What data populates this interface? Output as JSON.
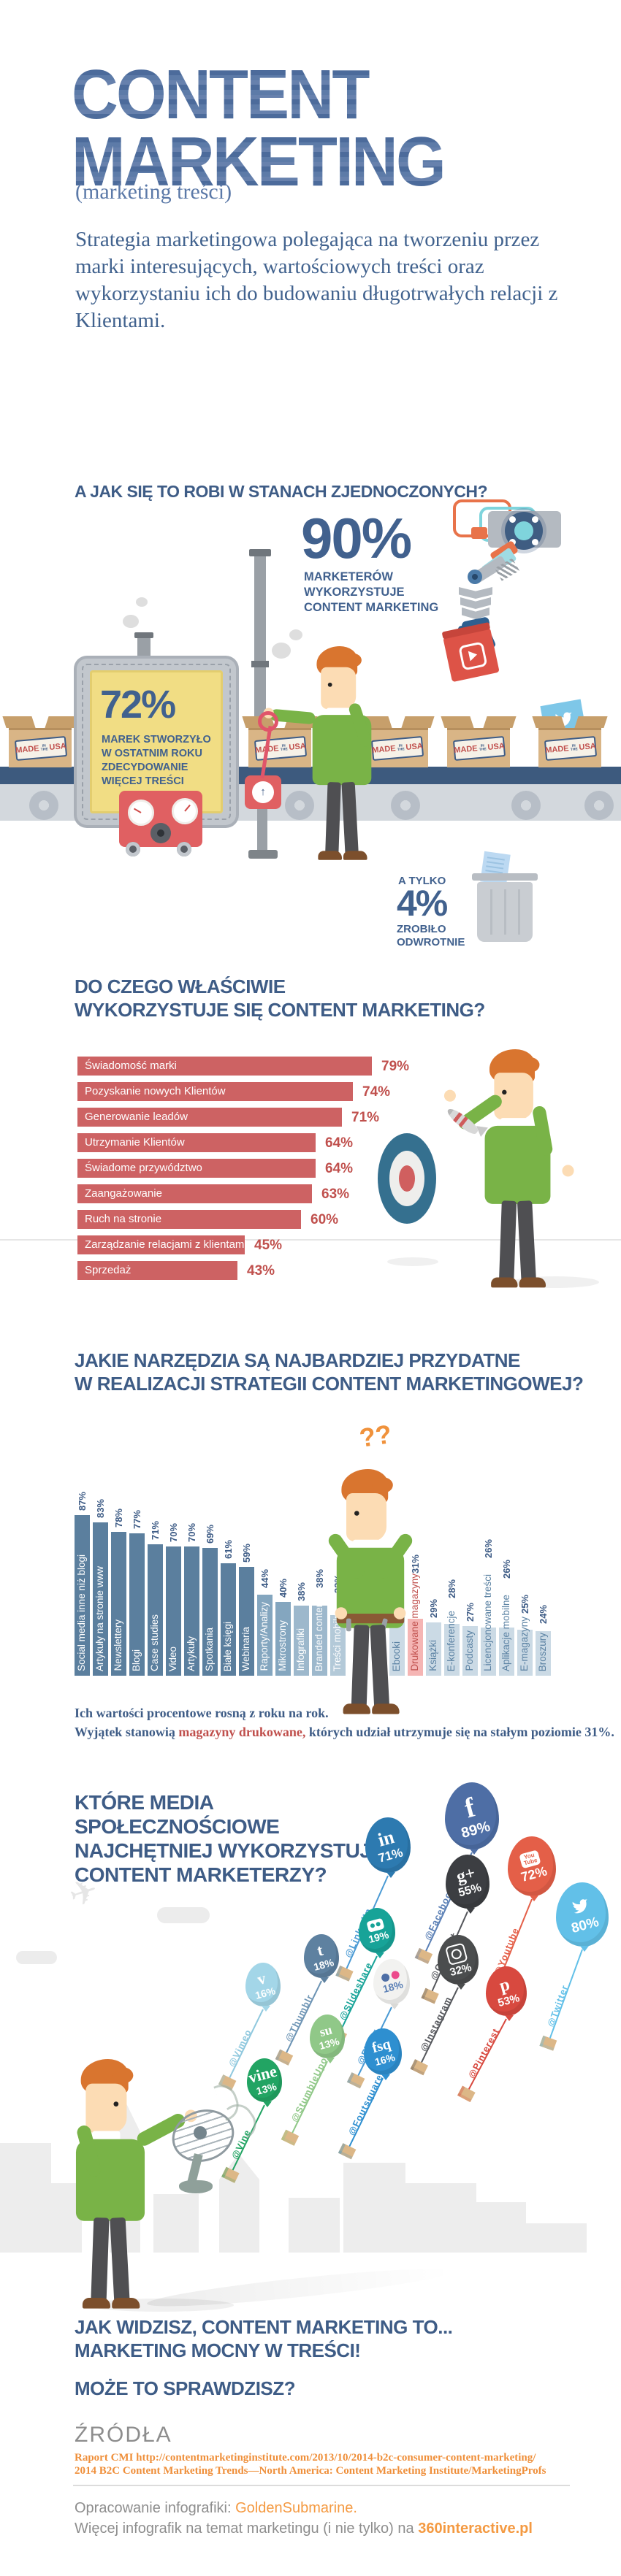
{
  "colors": {
    "navy": "#3e5c86",
    "title_blue": "#54749f",
    "bar_red": "#cd6263",
    "value_red": "#c0504d",
    "orange_accent": "#f0923c",
    "link_orange": "#ef8f3a",
    "green_sweater": "#79b347",
    "belt_navy": "#3d5a7e",
    "screen_yellow": "#f1dd84"
  },
  "header": {
    "title_line1": "CONTENT",
    "title_line2": "MARKETING",
    "subtitle": "(marketing treści)",
    "intro": "Strategia marketingowa polegająca na tworzeniu przez marki interesujących, wartościowych treści oraz wykorzystaniu ich do budowaniu długotrwałych relacji z Klientami."
  },
  "usa_section": {
    "heading": "A JAK SIĘ TO ROBI W STANACH ZJEDNOCZONYCH?",
    "stat90": {
      "value": "90%",
      "caption_lines": [
        "MARKETERÓW",
        "WYKORZYSTUJE",
        "CONTENT MARKETING"
      ]
    },
    "stat72": {
      "value": "72%",
      "caption_lines": [
        "MAREK STWORZYŁO",
        "W OSTATNIM ROKU",
        "ZDECYDOWANIE",
        "WIĘCEJ TREŚCI"
      ]
    },
    "stamp": {
      "made": "MADE",
      "inthe": "IN THE",
      "usa": "USA"
    },
    "stat4": {
      "prefix": "A TYLKO",
      "value": "4%",
      "line1": "ZROBIŁO",
      "line2": "ODWROTNIE"
    }
  },
  "usage_section": {
    "heading_line1": "DO CZEGO WŁAŚCIWIE",
    "heading_line2": "WYKORZYSTUJE SIĘ CONTENT MARKETING?"
  },
  "tools_section": {
    "heading_line1": "JAKIE NARZĘDZIA SĄ NAJBARDZIEJ PRZYDATNE",
    "heading_line2": "W REALIZACJI STRATEGII CONTENT MARKETINGOWEJ?",
    "question_marks": "??",
    "note_line1": "Ich wartości procentowe rosną z roku na rok.",
    "note2_pre": "Wyjątek stanowią ",
    "note2_highlight": "magazyny drukowane,",
    "note2_post": " których udział utrzymuje się na stałym poziomie 31%."
  },
  "social_section": {
    "heading_lines": [
      "KTÓRE MEDIA",
      "SPOŁECZNOŚCIOWE",
      "NAJCHĘTNIEJ WYKORZYSTUJĄ",
      "CONTENT MARKETERZY?"
    ]
  },
  "outro": {
    "line1": "JAK WIDZISZ, CONTENT MARKETING TO...",
    "line2": "MARKETING MOCNY W TREŚCI!",
    "line3": "MOŻE TO SPRAWDZISZ?"
  },
  "footer": {
    "sources_title": "ŹRÓDŁA",
    "source_line1": "Raport CMI http://contentmarketinginstitute.com/2013/10/2014-b2c-consumer-content-marketing/",
    "source_line2": "2014 B2C Content Marketing Trends—North America: Content Marketing Institute/MarketingProfs",
    "credit_pre": "Opracowanie infografiki: ",
    "credit_brand": "GoldenSubmarine.",
    "more_pre": "Więcej infografik na temat marketingu (i nie tylko) na ",
    "more_link": "360interactive.pl"
  },
  "chart_data": [
    {
      "type": "bar",
      "orientation": "horizontal",
      "title": "Do czego właściwie wykorzystuje się content marketing?",
      "unit": "%",
      "bar_color": "#cd6263",
      "categories": [
        "Świadomość marki",
        "Pozyskanie nowych Klientów",
        "Generowanie leadów",
        "Utrzymanie Klientów",
        "Świadome przywództwo",
        "Zaangażowanie",
        "Ruch na stronie",
        "Zarządzanie relacjami z klientami",
        "Sprzedaż"
      ],
      "values": [
        79,
        74,
        71,
        64,
        64,
        63,
        60,
        45,
        43
      ]
    },
    {
      "type": "bar",
      "orientation": "vertical",
      "title": "Jakie narzędzia są najbardziej przydatne w realizacji strategii content marketingowej?",
      "unit": "%",
      "note": "Ich wartości procentowe rosną z roku na rok. Wyjątek stanowią magazyny drukowane, których udział utrzymuje się na stałym poziomie 31%.",
      "highlight_category": "Drukowane magazyny",
      "highlight_color": "#f5b5b4",
      "categories": [
        "Social media inne niż blogi",
        "Artykuły na stronie www",
        "Newslettery",
        "Blogi",
        "Case studies",
        "Video",
        "Artykuły",
        "Spotkania",
        "Białe księgi",
        "Webinaria",
        "Raporty/Analizy",
        "Mikrostrony",
        "Infografiki",
        "Branded content",
        "Treści mobilne",
        "Ebooki",
        "Drukowane magazyny",
        "Książki",
        "E-konferencje",
        "Podcasty",
        "Licencjonowane treści",
        "Aplikacje mobilne",
        "E-magazyny",
        "Broszury"
      ],
      "values": [
        87,
        83,
        78,
        77,
        71,
        70,
        70,
        69,
        61,
        59,
        44,
        40,
        38,
        38,
        33,
        32,
        31,
        29,
        28,
        27,
        26,
        26,
        25,
        24
      ]
    },
    {
      "type": "scatter",
      "title": "Które media społecznościowe najchętniej wykorzystują content marketerzy?",
      "unit": "%",
      "points": [
        {
          "name": "Facebook",
          "label": "@Facebook",
          "value": 89
        },
        {
          "name": "LinkedIn",
          "label": "@LinkedIn",
          "value": 71
        },
        {
          "name": "YouTube",
          "label": "@Youtube",
          "value": 72
        },
        {
          "name": "Twitter",
          "label": "@Twitter",
          "value": 80
        },
        {
          "name": "Google+",
          "label": "@Google+",
          "value": 55
        },
        {
          "name": "Pinterest",
          "label": "@Pinterest",
          "value": 53
        },
        {
          "name": "Instagram",
          "label": "@Instagram",
          "value": 32
        },
        {
          "name": "Slideshare",
          "label": "@Slideshare",
          "value": 19
        },
        {
          "name": "Tumblr",
          "label": "@Thumblr",
          "value": 18
        },
        {
          "name": "Flickr",
          "label": "@Flickr",
          "value": 18
        },
        {
          "name": "Vimeo",
          "label": "@Vimeo",
          "value": 16
        },
        {
          "name": "Foursquare",
          "label": "@Foutsquare",
          "value": 16
        },
        {
          "name": "StumbleUpon",
          "label": "@StumbleUpon",
          "value": 13
        },
        {
          "name": "Vine",
          "label": "@Vine",
          "value": 13
        }
      ]
    }
  ]
}
